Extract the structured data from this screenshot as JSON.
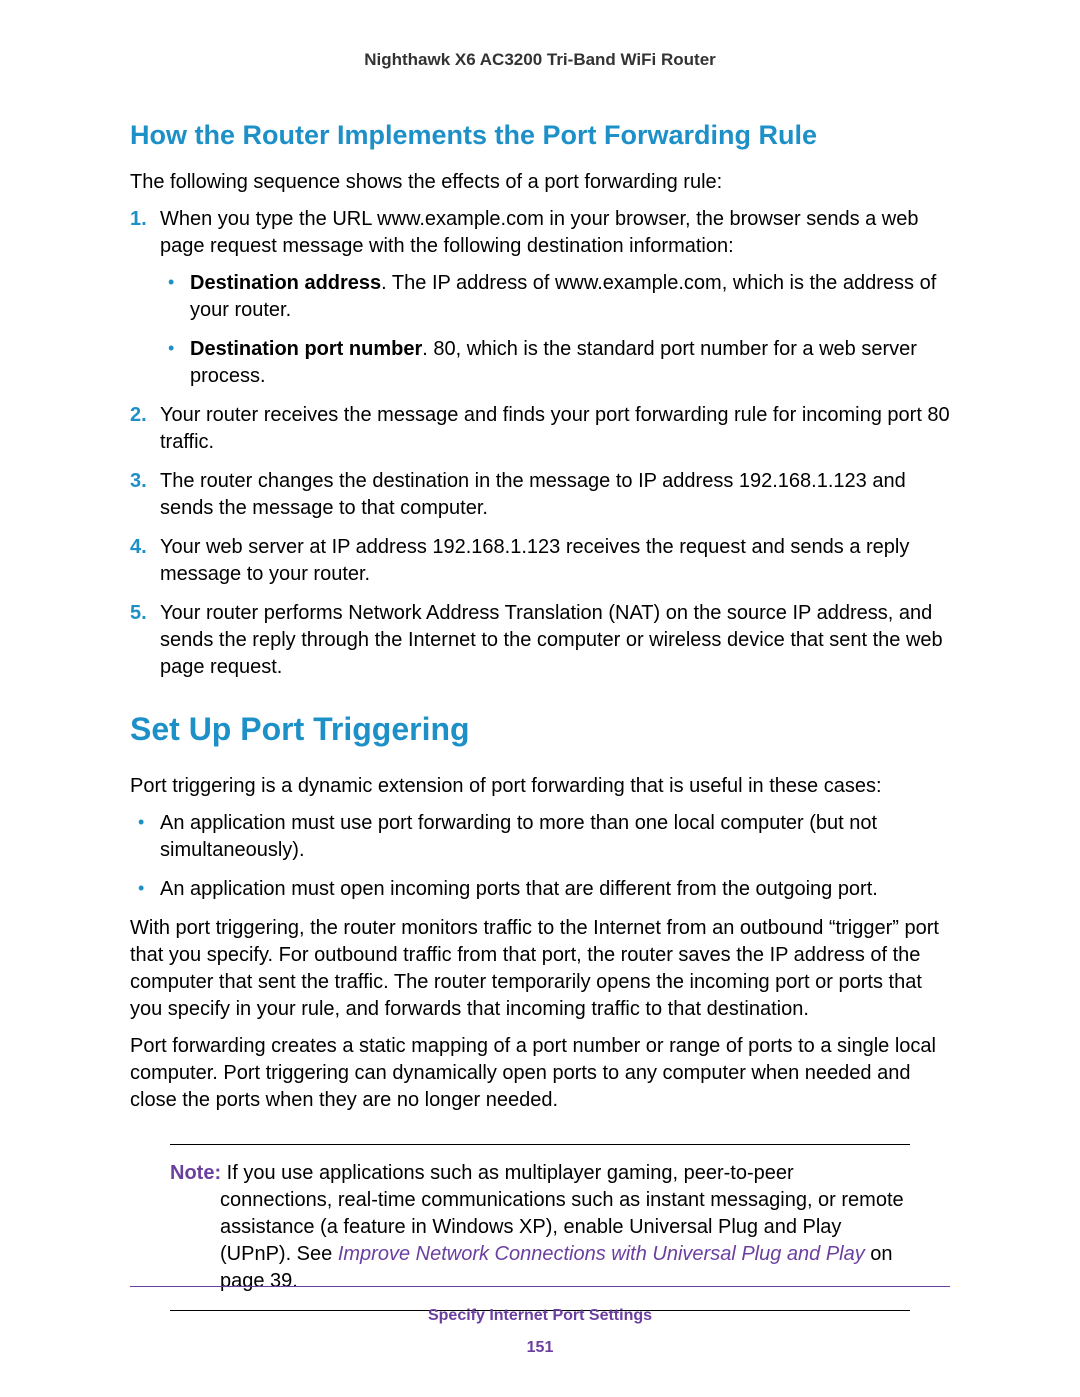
{
  "header": {
    "product": "Nighthawk X6 AC3200 Tri-Band WiFi Router"
  },
  "section1": {
    "heading": "How the Router Implements the Port Forwarding Rule",
    "intro": "The following sequence shows the effects of a port forwarding rule:",
    "steps": {
      "s1": "When you type the URL www.example.com in your browser, the browser sends a web page request message with the following destination information:",
      "s1_sub1_bold": "Destination address",
      "s1_sub1_rest": ". The IP address of www.example.com, which is the address of your router.",
      "s1_sub2_bold": "Destination port number",
      "s1_sub2_rest": ". 80, which is the standard port number for a web server process.",
      "s2": "Your router receives the message and finds your port forwarding rule for incoming port 80 traffic.",
      "s3": "The router changes the destination in the message to IP address 192.168.1.123 and sends the message to that computer.",
      "s4": "Your web server at IP address 192.168.1.123 receives the request and sends a reply message to your router.",
      "s5": "Your router performs Network Address Translation (NAT) on the source IP address, and sends the reply through the Internet to the computer or wireless device that sent the web page request."
    }
  },
  "section2": {
    "heading": "Set Up Port Triggering",
    "intro": "Port triggering is a dynamic extension of port forwarding that is useful in these cases:",
    "bullets": {
      "b1": "An application must use port forwarding to more than one local computer (but not simultaneously).",
      "b2": "An application must open incoming ports that are different from the outgoing port."
    },
    "para1": "With port triggering, the router monitors traffic to the Internet from an outbound “trigger” port that you specify. For outbound traffic from that port, the router saves the IP address of the computer that sent the traffic. The router temporarily opens the incoming port or ports that you specify in your rule, and forwards that incoming traffic to that destination.",
    "para2": "Port forwarding creates a static mapping of a port number or range of ports to a single local computer. Port triggering can dynamically open ports to any computer when needed and close the ports when they are no longer needed."
  },
  "note": {
    "label": "Note:",
    "pre": " If you use applications such as multiplayer gaming, peer-to-peer connections, real-time communications such as instant messaging, or remote assistance (a feature in Windows XP), enable Universal Plug and Play (UPnP). See ",
    "link": "Improve Network Connections with Universal Plug and Play",
    "post": " on page 39."
  },
  "footer": {
    "title": "Specify Internet Port Settings",
    "page": "151"
  }
}
